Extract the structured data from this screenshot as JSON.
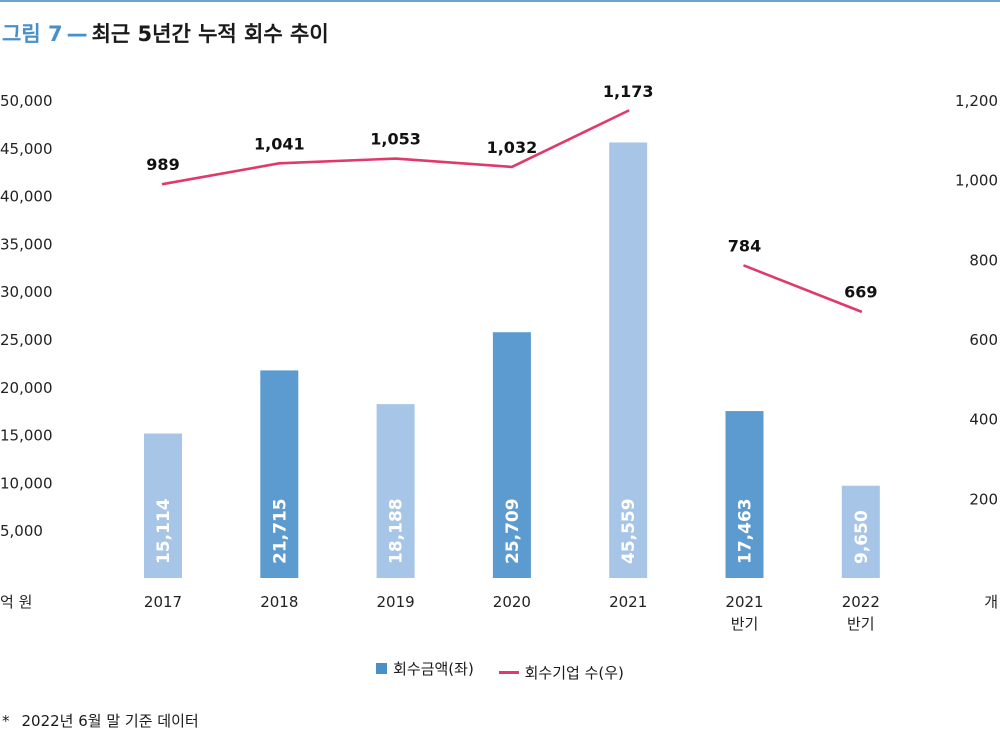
{
  "figure": {
    "label": "그림 7",
    "dash": "—",
    "title": "최근 5년간 누적 회수 추이"
  },
  "footnote": {
    "mark": "*",
    "text": "2022년 6월 말 기준 데이터"
  },
  "colors": {
    "accent": "#4a90c8",
    "bar_dark": "#5b9bcf",
    "bar_light": "#a7c5e6",
    "line": "#e0396a"
  },
  "chart_data": {
    "type": "bar",
    "categories": [
      "2017",
      "2018",
      "2019",
      "2020",
      "2021",
      "2021\n반기",
      "2022\n반기"
    ],
    "category_lines": [
      [
        "2017"
      ],
      [
        "2018"
      ],
      [
        "2019"
      ],
      [
        "2020"
      ],
      [
        "2021"
      ],
      [
        "2021",
        "반기"
      ],
      [
        "2022",
        "반기"
      ]
    ],
    "series": [
      {
        "name": "회수금액(좌)",
        "type": "bar",
        "axis": "left",
        "values": [
          15114,
          21715,
          18188,
          25709,
          45559,
          17463,
          9650
        ],
        "value_labels": [
          "15,114",
          "21,715",
          "18,188",
          "25,709",
          "45,559",
          "17,463",
          "9,650"
        ],
        "shades": [
          "light",
          "dark",
          "light",
          "dark",
          "light",
          "dark",
          "light"
        ]
      },
      {
        "name": "회수기업 수(우)",
        "type": "line",
        "axis": "right",
        "values": [
          989,
          1041,
          1053,
          1032,
          1173,
          784,
          669
        ],
        "value_labels": [
          "989",
          "1,041",
          "1,053",
          "1,032",
          "1,173",
          "784",
          "669"
        ],
        "segments": [
          [
            0,
            4
          ],
          [
            5,
            6
          ]
        ]
      }
    ],
    "y_left": {
      "unit": "억 원",
      "range": [
        0,
        50000
      ],
      "ticks": [
        5000,
        10000,
        15000,
        20000,
        25000,
        30000,
        35000,
        40000,
        45000,
        50000
      ],
      "tick_labels": [
        "5,000",
        "10,000",
        "15,000",
        "20,000",
        "25,000",
        "30,000",
        "35,000",
        "40,000",
        "45,000",
        "50,000"
      ]
    },
    "y_right": {
      "unit": "개",
      "range": [
        0,
        1200
      ],
      "ticks": [
        200,
        400,
        600,
        800,
        1000,
        1200
      ],
      "tick_labels": [
        "200",
        "400",
        "600",
        "800",
        "1,000",
        "1,200"
      ]
    },
    "grid": false,
    "legend_position": "bottom-center"
  }
}
